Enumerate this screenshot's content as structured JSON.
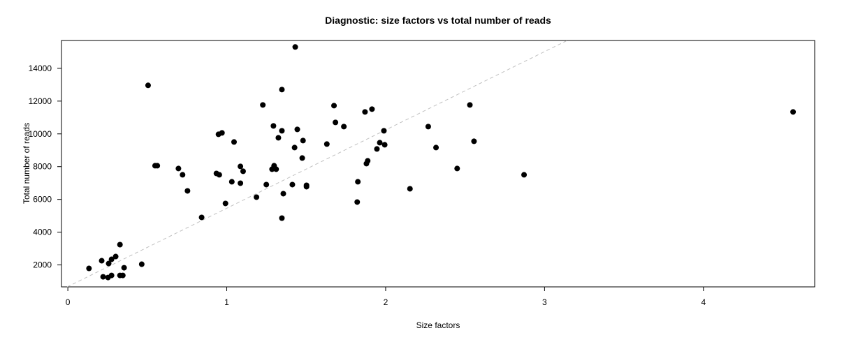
{
  "chart_data": {
    "type": "scatter",
    "title": "Diagnostic: size factors vs total number of reads",
    "xlabel": "Size factors",
    "ylabel": "Total number of reads",
    "xlim": [
      -0.04,
      4.7
    ],
    "ylim": [
      660,
      15700
    ],
    "xticks": [
      0,
      1,
      2,
      3,
      4
    ],
    "yticks": [
      2000,
      4000,
      6000,
      8000,
      10000,
      12000,
      14000
    ],
    "grid": false,
    "point_color": "#000000",
    "reference_line": {
      "style": "dashed",
      "color": "#c0c0c0",
      "intercept": 680,
      "slope": 4780
    },
    "points": [
      [
        0.133,
        1787
      ],
      [
        0.213,
        2256
      ],
      [
        0.222,
        1275
      ],
      [
        0.253,
        1232
      ],
      [
        0.257,
        2085
      ],
      [
        0.275,
        2341
      ],
      [
        0.275,
        1360
      ],
      [
        0.301,
        2512
      ],
      [
        0.328,
        1360
      ],
      [
        0.346,
        1360
      ],
      [
        0.328,
        3237
      ],
      [
        0.354,
        1829
      ],
      [
        0.465,
        2043
      ],
      [
        0.505,
        12960
      ],
      [
        0.549,
        8055
      ],
      [
        0.563,
        8055
      ],
      [
        0.696,
        7885
      ],
      [
        0.722,
        7501
      ],
      [
        0.753,
        6520
      ],
      [
        0.842,
        4900
      ],
      [
        0.935,
        7586
      ],
      [
        0.948,
        9974
      ],
      [
        0.953,
        7501
      ],
      [
        0.97,
        10060
      ],
      [
        0.992,
        5753
      ],
      [
        1.032,
        7075
      ],
      [
        1.046,
        9505
      ],
      [
        1.086,
        8013
      ],
      [
        1.086,
        6989
      ],
      [
        1.103,
        7714
      ],
      [
        1.187,
        6136
      ],
      [
        1.227,
        11765
      ],
      [
        1.249,
        6904
      ],
      [
        1.285,
        7842
      ],
      [
        1.294,
        10486
      ],
      [
        1.298,
        8055
      ],
      [
        1.311,
        7842
      ],
      [
        1.325,
        9761
      ],
      [
        1.347,
        12704
      ],
      [
        1.347,
        10188
      ],
      [
        1.347,
        4857
      ],
      [
        1.356,
        6350
      ],
      [
        1.413,
        6904
      ],
      [
        1.427,
        9164
      ],
      [
        1.431,
        15305
      ],
      [
        1.444,
        10273
      ],
      [
        1.475,
        8524
      ],
      [
        1.48,
        9590
      ],
      [
        1.502,
        6861
      ],
      [
        1.502,
        6776
      ],
      [
        1.63,
        9377
      ],
      [
        1.675,
        11723
      ],
      [
        1.684,
        10699
      ],
      [
        1.737,
        10443
      ],
      [
        1.821,
        5838
      ],
      [
        1.825,
        7075
      ],
      [
        1.87,
        11339
      ],
      [
        1.879,
        8183
      ],
      [
        1.887,
        8354
      ],
      [
        1.914,
        11510
      ],
      [
        1.945,
        9079
      ],
      [
        1.963,
        9462
      ],
      [
        1.989,
        10188
      ],
      [
        1.994,
        9335
      ],
      [
        2.153,
        6648
      ],
      [
        2.268,
        10443
      ],
      [
        2.317,
        9164
      ],
      [
        2.45,
        7885
      ],
      [
        2.53,
        11765
      ],
      [
        2.556,
        9548
      ],
      [
        2.871,
        7501
      ],
      [
        4.564,
        11339
      ]
    ]
  }
}
